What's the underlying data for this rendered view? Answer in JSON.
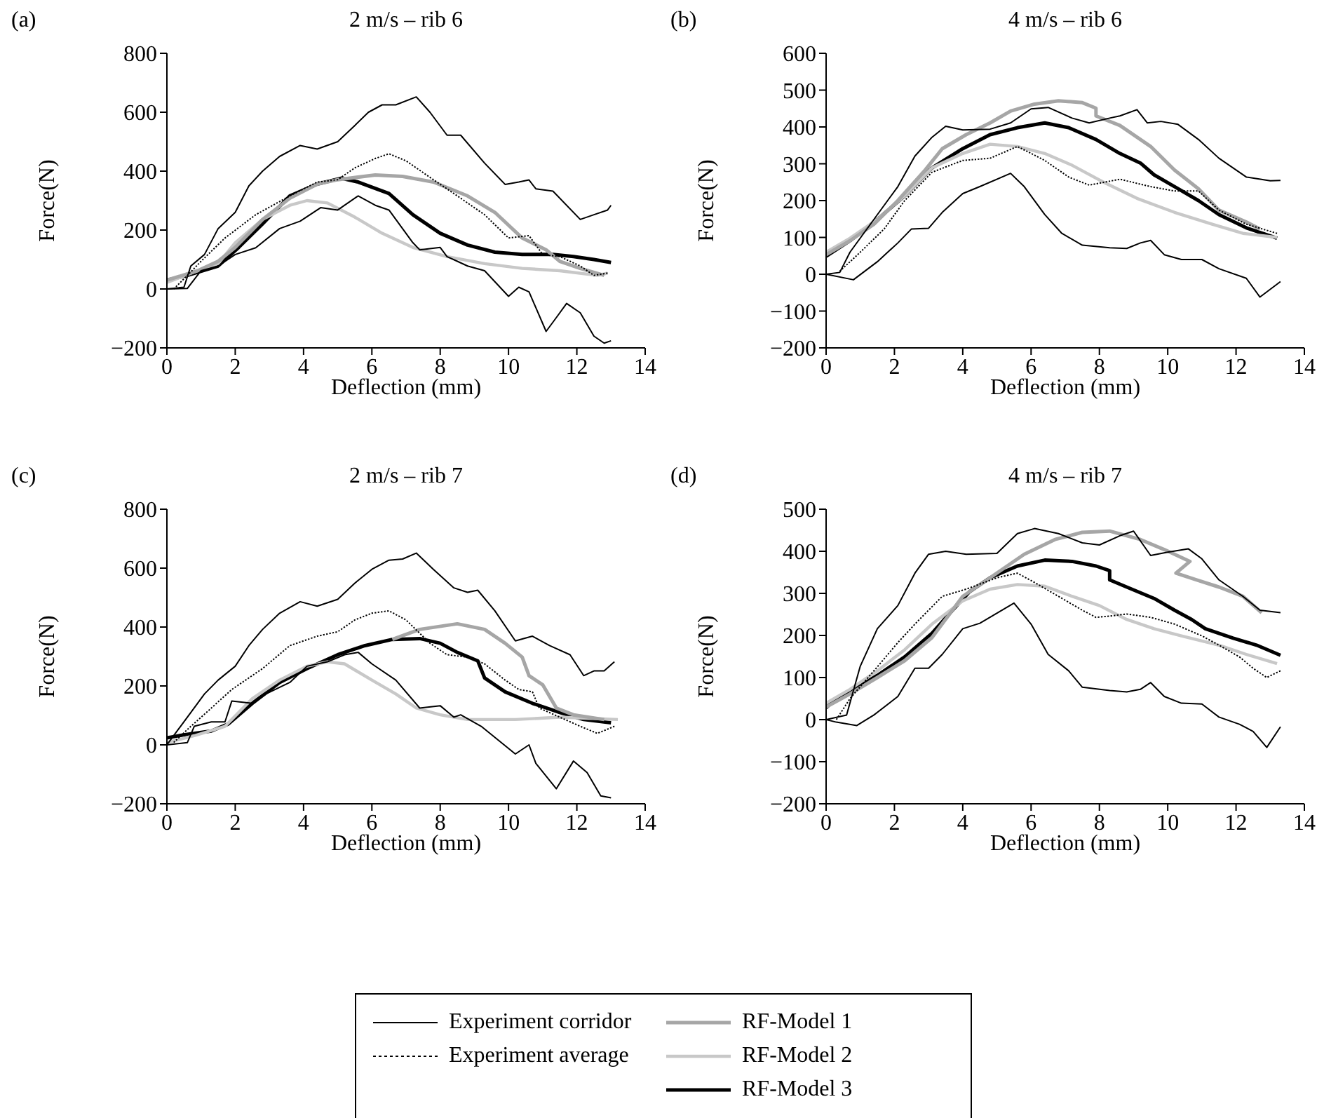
{
  "chart_data": [
    {
      "type": "line",
      "title": "2 m/s – rib 6",
      "annotations": [
        "(a)"
      ],
      "xlabel": "Deflection (mm)",
      "ylabel": "Force(N)",
      "xlim": [
        0,
        14
      ],
      "xticks": [
        0,
        2,
        4,
        6,
        8,
        10,
        12,
        14
      ],
      "ylim": [
        -200,
        800
      ],
      "yticks": [
        -200,
        0,
        200,
        400,
        600,
        800
      ],
      "legend": "bottom",
      "series": [
        {
          "name": "Experiment corridor",
          "color": "#000000",
          "x": [
            0,
            0.5,
            0.7,
            1.1,
            1.5,
            2.0,
            2.4,
            2.8,
            3.3,
            3.9,
            4.4,
            5.0,
            5.5,
            5.9,
            6.3,
            6.7,
            7.3,
            7.7,
            8.2,
            8.6,
            9.3,
            9.9,
            10.3,
            10.6,
            10.8,
            11.3,
            12.1,
            12.5,
            12.9,
            13.0
          ],
          "values": [
            0,
            6,
            78,
            117,
            205,
            260,
            350,
            400,
            450,
            487,
            475,
            500,
            555,
            600,
            625,
            625,
            652,
            600,
            522,
            522,
            427,
            355,
            363,
            370,
            340,
            332,
            236,
            252,
            268,
            284
          ]
        },
        {
          "color": "#000000",
          "x": [
            0,
            0.6,
            1.0,
            1.5,
            2.0,
            2.6,
            3.3,
            3.9,
            4.5,
            5.0,
            5.6,
            6.1,
            6.5,
            7.2,
            7.4,
            8.0,
            8.2,
            8.5,
            8.8,
            9.3,
            10.0,
            10.3,
            10.6,
            11.1,
            11.4,
            11.7,
            12.1,
            12.5,
            12.8,
            13.0
          ],
          "values": [
            0,
            2,
            62,
            78,
            117,
            140,
            205,
            230,
            276,
            268,
            316,
            284,
            268,
            157,
            133,
            141,
            110,
            94,
            78,
            62,
            -25,
            6,
            -10,
            -144,
            -97,
            -49,
            -81,
            -160,
            -184,
            -176
          ]
        },
        {
          "name": "Experiment average",
          "color": "#000000",
          "line_style": "dotted",
          "x": [
            0.2,
            0.6,
            1.0,
            1.7,
            2.6,
            3.6,
            4.4,
            5.0,
            5.5,
            6.1,
            6.5,
            7.0,
            7.8,
            8.5,
            9.3,
            10.0,
            10.6,
            11.0,
            11.5,
            12.1,
            12.5,
            12.9
          ],
          "values": [
            0,
            46,
            94,
            173,
            252,
            316,
            363,
            371,
            411,
            443,
            459,
            435,
            371,
            316,
            252,
            173,
            181,
            117,
            110,
            78,
            46,
            54
          ]
        },
        {
          "name": "RF-Model 1",
          "color": "#a6a6a6",
          "x": [
            0,
            0.9,
            1.5,
            2.0,
            2.8,
            3.6,
            4.4,
            5.0,
            6.1,
            6.9,
            7.8,
            8.8,
            9.6,
            10.4,
            11.1,
            11.5,
            12.1,
            12.8
          ],
          "values": [
            30,
            62,
            94,
            141,
            236,
            308,
            356,
            371,
            387,
            382,
            363,
            316,
            260,
            173,
            133,
            94,
            70,
            46
          ]
        },
        {
          "name": "RF-Model 2",
          "color": "#c8c8c8",
          "x": [
            0,
            0.9,
            1.5,
            2.0,
            2.8,
            3.6,
            4.1,
            4.7,
            5.5,
            6.3,
            7.2,
            8.2,
            9.3,
            10.4,
            11.5,
            12.6,
            12.9
          ],
          "values": [
            22,
            62,
            86,
            157,
            236,
            284,
            300,
            292,
            244,
            189,
            141,
            110,
            86,
            70,
            62,
            46,
            54
          ]
        },
        {
          "name": "RF-Model 3",
          "color": "#000000",
          "x": [
            0,
            0.6,
            1.5,
            2.1,
            2.8,
            3.6,
            4.4,
            5.1,
            5.6,
            6.5,
            7.2,
            8.0,
            8.8,
            9.6,
            10.4,
            11.3,
            11.9,
            12.5,
            13.0
          ],
          "values": [
            30,
            46,
            78,
            141,
            221,
            316,
            356,
            376,
            363,
            324,
            252,
            189,
            149,
            125,
            117,
            117,
            110,
            100,
            90
          ]
        }
      ]
    },
    {
      "type": "line",
      "title": "4 m/s – rib 6",
      "annotations": [
        "(b)"
      ],
      "xlabel": "Deflection (mm)",
      "ylabel": "Force(N)",
      "xlim": [
        0,
        14
      ],
      "xticks": [
        0,
        2,
        4,
        6,
        8,
        10,
        12,
        14
      ],
      "ylim": [
        -200,
        600
      ],
      "yticks": [
        -200,
        -100,
        0,
        100,
        200,
        300,
        400,
        500,
        600
      ],
      "legend": "bottom",
      "series": [
        {
          "name": "Experiment corridor",
          "color": "#000000",
          "x": [
            0,
            0.4,
            0.7,
            1.4,
            2.1,
            2.6,
            3.1,
            3.5,
            4.0,
            4.8,
            5.4,
            6.0,
            6.5,
            7.2,
            7.7,
            8.3,
            8.6,
            9.1,
            9.4,
            9.8,
            10.3,
            10.9,
            11.5,
            12.3,
            13.0,
            13.3
          ],
          "values": [
            0,
            5,
            60,
            149,
            238,
            321,
            372,
            402,
            392,
            394,
            411,
            449,
            453,
            424,
            411,
            424,
            430,
            447,
            411,
            415,
            407,
            366,
            315,
            264,
            254,
            255
          ]
        },
        {
          "color": "#000000",
          "x": [
            0,
            0.8,
            1.5,
            2.1,
            2.5,
            3.0,
            3.4,
            4.0,
            4.5,
            5.4,
            5.8,
            6.4,
            6.9,
            7.5,
            8.3,
            8.8,
            9.2,
            9.5,
            9.9,
            10.4,
            11.0,
            11.5,
            12.3,
            12.7,
            13.3
          ],
          "values": [
            0,
            -15,
            34,
            85,
            123,
            125,
            168,
            219,
            238,
            274,
            238,
            162,
            111,
            79,
            72,
            70,
            85,
            92,
            53,
            40,
            40,
            15,
            -11,
            -62,
            -20
          ]
        },
        {
          "name": "Experiment average",
          "color": "#000000",
          "line_style": "dotted",
          "x": [
            0.4,
            1.0,
            1.7,
            2.3,
            3.1,
            4.0,
            4.8,
            5.6,
            6.4,
            7.1,
            7.7,
            8.6,
            9.5,
            10.2,
            10.9,
            11.5,
            12.3,
            13.2
          ],
          "values": [
            8,
            60,
            123,
            200,
            277,
            309,
            315,
            347,
            309,
            264,
            242,
            258,
            238,
            226,
            226,
            174,
            136,
            111
          ]
        },
        {
          "name": "RF-Model 1",
          "color": "#a6a6a6",
          "x": [
            0,
            0.7,
            1.4,
            2.1,
            2.9,
            3.4,
            4.1,
            4.8,
            5.4,
            6.1,
            6.8,
            7.5,
            7.9,
            7.9,
            8.6,
            9.5,
            10.2,
            10.9,
            11.5,
            12.3,
            12.7
          ],
          "values": [
            53,
            91,
            136,
            200,
            283,
            341,
            379,
            411,
            443,
            462,
            471,
            466,
            451,
            430,
            404,
            347,
            283,
            232,
            174,
            142,
            123
          ]
        },
        {
          "name": "RF-Model 2",
          "color": "#c8c8c8",
          "x": [
            0,
            0.7,
            1.5,
            2.3,
            3.1,
            4.0,
            4.8,
            5.6,
            6.4,
            7.2,
            8.1,
            9.1,
            10.2,
            11.3,
            12.2,
            13.2
          ],
          "values": [
            60,
            98,
            149,
            213,
            289,
            328,
            353,
            347,
            328,
            296,
            251,
            206,
            168,
            136,
            111,
            100
          ]
        },
        {
          "name": "RF-Model 3",
          "color": "#000000",
          "x": [
            0,
            0.7,
            1.5,
            2.3,
            3.1,
            4.0,
            4.8,
            5.6,
            6.4,
            7.1,
            7.9,
            8.6,
            9.2,
            9.6,
            10.2,
            10.9,
            11.5,
            12.3,
            13.2
          ],
          "values": [
            49,
            91,
            149,
            213,
            289,
            341,
            379,
            398,
            411,
            398,
            366,
            328,
            302,
            270,
            238,
            200,
            162,
            126,
            98
          ]
        }
      ]
    },
    {
      "type": "line",
      "title": "2 m/s – rib 7",
      "annotations": [
        "(c)"
      ],
      "xlabel": "Deflection (mm)",
      "ylabel": "Force(N)",
      "xlim": [
        0,
        14
      ],
      "xticks": [
        0,
        2,
        4,
        6,
        8,
        10,
        12,
        14
      ],
      "ylim": [
        -200,
        800
      ],
      "yticks": [
        -200,
        0,
        200,
        400,
        600,
        800
      ],
      "legend": "bottom",
      "series": [
        {
          "name": "Experiment corridor",
          "color": "#000000",
          "x": [
            0,
            0.4,
            0.7,
            1.1,
            1.5,
            2.0,
            2.4,
            2.8,
            3.3,
            3.9,
            4.4,
            5.0,
            5.5,
            6.0,
            6.5,
            6.9,
            7.3,
            7.8,
            8.4,
            8.8,
            9.1,
            9.6,
            10.2,
            10.7,
            11.2,
            11.8,
            12.2,
            12.5,
            12.8,
            13.1
          ],
          "values": [
            0,
            63,
            110,
            173,
            220,
            267,
            337,
            392,
            447,
            486,
            471,
            494,
            549,
            596,
            627,
            631,
            651,
            596,
            533,
            518,
            525,
            455,
            353,
            369,
            337,
            306,
            235,
            251,
            251,
            282
          ]
        },
        {
          "color": "#000000",
          "x": [
            0,
            0.6,
            0.8,
            1.3,
            1.7,
            1.9,
            2.5,
            2.9,
            3.6,
            4.1,
            4.7,
            5.2,
            5.6,
            6.0,
            6.7,
            7.4,
            8.0,
            8.4,
            8.6,
            9.2,
            9.7,
            10.2,
            10.6,
            10.8,
            11.4,
            11.9,
            12.3,
            12.7,
            13.0
          ],
          "values": [
            0,
            8,
            63,
            78,
            78,
            149,
            141,
            173,
            212,
            267,
            282,
            306,
            314,
            275,
            220,
            125,
            133,
            94,
            102,
            63,
            16,
            -31,
            0,
            -63,
            -149,
            -55,
            -94,
            -173,
            -180
          ]
        },
        {
          "name": "Experiment average",
          "color": "#000000",
          "line_style": "dotted",
          "x": [
            0.2,
            0.7,
            1.3,
            1.9,
            2.8,
            3.6,
            4.4,
            5.0,
            5.5,
            6.0,
            6.5,
            7.0,
            7.7,
            8.2,
            8.8,
            9.3,
            9.9,
            10.3,
            10.7,
            10.9,
            11.5,
            12.1,
            12.6,
            13.1
          ],
          "values": [
            8,
            63,
            125,
            188,
            259,
            337,
            369,
            384,
            424,
            447,
            455,
            424,
            345,
            306,
            298,
            275,
            220,
            188,
            180,
            125,
            94,
            63,
            39,
            63
          ]
        },
        {
          "name": "RF-Model 1",
          "color": "#a6a6a6",
          "x": [
            6.6,
            7.4,
            8.5,
            9.3,
            9.9,
            10.4,
            10.6,
            11.0,
            11.4,
            11.9,
            12.8
          ],
          "values": [
            358,
            392,
            411,
            392,
            345,
            298,
            235,
            204,
            125,
            102,
            86
          ]
        },
        {
          "name": "RF-Model 2",
          "color": "#c8c8c8",
          "x": [
            0,
            0.8,
            1.7,
            2.5,
            3.3,
            4.1,
            4.7,
            5.2,
            6.0,
            6.7,
            7.3,
            8.0,
            8.8,
            10.2,
            11.5,
            13.2
          ],
          "values": [
            8,
            31,
            63,
            157,
            220,
            267,
            282,
            275,
            220,
            173,
            125,
            102,
            86,
            86,
            94,
            86
          ]
        },
        {
          "name": "RF-Model 3",
          "color": "#000000",
          "x": [
            0,
            0.6,
            1.3,
            1.8,
            2.5,
            3.3,
            4.1,
            5.0,
            5.8,
            6.6,
            7.4,
            8.0,
            8.5,
            9.1,
            9.3,
            9.9,
            10.7,
            11.5,
            12.2,
            13.0
          ],
          "values": [
            24,
            36,
            47,
            71,
            141,
            212,
            259,
            306,
            337,
            358,
            361,
            345,
            314,
            285,
            227,
            180,
            141,
            110,
            86,
            75
          ]
        }
      ]
    },
    {
      "type": "line",
      "title": "4 m/s – rib 7",
      "annotations": [
        "(d)"
      ],
      "xlabel": "Deflection (mm)",
      "ylabel": "Force(N)",
      "xlim": [
        0,
        14
      ],
      "xticks": [
        0,
        2,
        4,
        6,
        8,
        10,
        12,
        14
      ],
      "ylim": [
        -200,
        500
      ],
      "yticks": [
        -200,
        -100,
        0,
        100,
        200,
        300,
        400,
        500
      ],
      "legend": "bottom",
      "series": [
        {
          "name": "Experiment corridor",
          "color": "#000000",
          "x": [
            0,
            0.6,
            1.0,
            1.5,
            2.1,
            2.6,
            3.0,
            3.5,
            4.1,
            5.0,
            5.6,
            6.1,
            6.8,
            7.5,
            8.0,
            8.6,
            9.0,
            9.5,
            10.0,
            10.6,
            11.0,
            11.5,
            12.2,
            12.7,
            13.3
          ],
          "values": [
            0,
            11,
            127,
            216,
            271,
            348,
            393,
            400,
            393,
            395,
            442,
            454,
            442,
            420,
            415,
            437,
            448,
            390,
            398,
            406,
            382,
            332,
            293,
            260,
            254
          ]
        },
        {
          "color": "#000000",
          "x": [
            0,
            0.3,
            0.9,
            1.4,
            2.1,
            2.6,
            3.0,
            3.4,
            4.0,
            4.5,
            5.5,
            6.0,
            6.5,
            7.1,
            7.5,
            8.3,
            8.8,
            9.2,
            9.5,
            9.9,
            10.4,
            11.0,
            11.5,
            12.1,
            12.5,
            12.9,
            13.3
          ],
          "values": [
            0,
            -6,
            -14,
            11,
            55,
            122,
            122,
            155,
            216,
            229,
            277,
            227,
            155,
            116,
            77,
            69,
            66,
            72,
            88,
            55,
            39,
            37,
            6,
            -11,
            -28,
            -66,
            -17
          ]
        },
        {
          "name": "Experiment average",
          "color": "#000000",
          "line_style": "dotted",
          "x": [
            0.3,
            0.7,
            1.4,
            2.1,
            2.6,
            3.4,
            4.1,
            5.0,
            5.6,
            6.1,
            6.8,
            7.5,
            7.9,
            8.3,
            8.8,
            9.5,
            10.2,
            11.0,
            11.5,
            12.1,
            12.5,
            12.9,
            13.3
          ],
          "values": [
            0,
            50,
            116,
            183,
            227,
            293,
            310,
            337,
            348,
            326,
            293,
            260,
            243,
            246,
            251,
            243,
            227,
            199,
            177,
            149,
            122,
            100,
            116
          ]
        },
        {
          "name": "RF-Model 1",
          "color": "#a6a6a6",
          "x": [
            0,
            0.7,
            1.5,
            2.3,
            3.1,
            4.0,
            4.8,
            5.3,
            5.8,
            6.7,
            7.5,
            8.3,
            9.2,
            9.9,
            10.65,
            10.24,
            10.85,
            11.5,
            12.2,
            12.75
          ],
          "values": [
            30,
            61,
            100,
            140,
            195,
            293,
            337,
            365,
            393,
            428,
            445,
            448,
            428,
            404,
            376,
            348,
            332,
            315,
            293,
            254
          ]
        },
        {
          "name": "RF-Model 2",
          "color": "#c8c8c8",
          "x": [
            0,
            0.7,
            1.5,
            2.3,
            3.1,
            4.0,
            4.8,
            5.6,
            6.4,
            7.2,
            8.0,
            8.8,
            9.6,
            10.4,
            11.5,
            12.3,
            13.2
          ],
          "values": [
            39,
            72,
            116,
            166,
            227,
            282,
            310,
            321,
            317,
            293,
            271,
            238,
            216,
            199,
            177,
            155,
            133
          ]
        },
        {
          "name": "RF-Model 3",
          "color": "#000000",
          "x": [
            0,
            0.2,
            0.7,
            1.5,
            2.3,
            3.1,
            3.7,
            4.2,
            4.8,
            5.6,
            6.4,
            7.2,
            7.9,
            8.3,
            8.3,
            8.8,
            9.6,
            10.2,
            10.7,
            11.1,
            11.9,
            12.6,
            13.3
          ],
          "values": [
            28,
            44,
            66,
            105,
            149,
            205,
            260,
            304,
            337,
            365,
            379,
            376,
            365,
            354,
            332,
            315,
            288,
            260,
            238,
            216,
            194,
            177,
            153
          ]
        }
      ]
    }
  ]
}
